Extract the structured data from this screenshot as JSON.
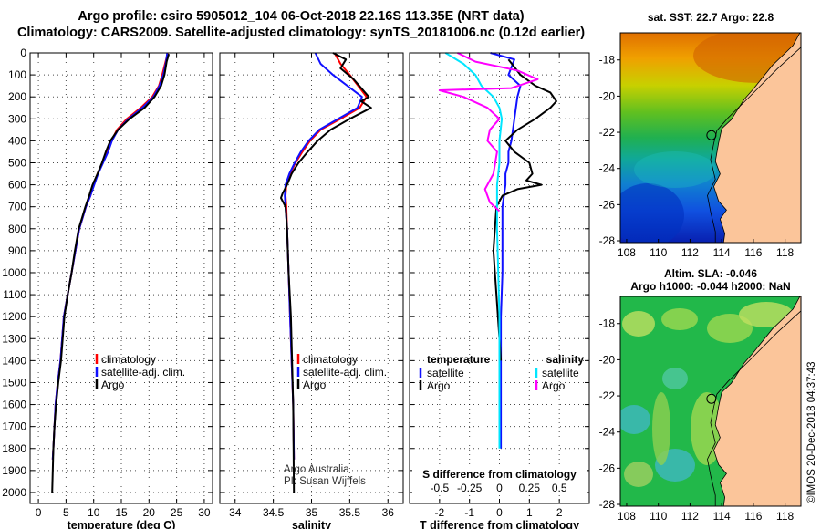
{
  "header": {
    "line1": "Argo profile: csiro 5905012_104 06-Oct-2018 22.16S 113.35E (NRT data)",
    "line2": "Climatology: CARS2009. Satellite-adjusted climatology: synTS_20181006.nc (0.12d earlier)"
  },
  "colors": {
    "climatology": "#ff0000",
    "satellite": "#1010ff",
    "argo": "#000000",
    "sal_sat": "#00e6ff",
    "sal_argo": "#ff00ff",
    "land": "#fbc59a"
  },
  "chart_data": [
    {
      "type": "line",
      "title": "",
      "xlabel": "temperature (deg C)",
      "ylabel": "",
      "xlim": [
        -1.5,
        31.5
      ],
      "ylim": [
        2050,
        0
      ],
      "xticks": [
        "0",
        "5",
        "10",
        "15",
        "20",
        "25",
        "30"
      ],
      "yticks": [
        "0",
        "100",
        "200",
        "300",
        "400",
        "500",
        "600",
        "700",
        "800",
        "900",
        "1000",
        "1100",
        "1200",
        "1300",
        "1400",
        "1500",
        "1600",
        "1700",
        "1800",
        "1900",
        "2000"
      ],
      "legend": [
        "climatology",
        "satellite-adj. clim.",
        "Argo"
      ],
      "series": [
        {
          "name": "climatology",
          "color": "#ff0000",
          "x": [
            23.4,
            23.0,
            22.4,
            21.8,
            20.6,
            18.5,
            16.0,
            14.2,
            13.2,
            12.5,
            11.6,
            10.7,
            10.0,
            9.4,
            8.6,
            8.0,
            7.4,
            6.7,
            6.0,
            5.3,
            4.6,
            4.0,
            3.5,
            3.1,
            2.9,
            2.7,
            2.6
          ],
          "y": [
            0,
            40,
            100,
            150,
            200,
            250,
            300,
            350,
            400,
            450,
            500,
            550,
            600,
            650,
            700,
            750,
            800,
            900,
            1000,
            1100,
            1200,
            1400,
            1500,
            1600,
            1700,
            1800,
            1850
          ]
        },
        {
          "name": "satellite-adj. clim.",
          "color": "#1010ff",
          "x": [
            23.3,
            23.1,
            22.6,
            21.9,
            20.8,
            18.8,
            16.3,
            14.4,
            13.3,
            12.6,
            11.7,
            10.8,
            10.1,
            9.4,
            8.6,
            8.0,
            7.4,
            6.7,
            6.0,
            5.3,
            4.6,
            4.0,
            3.5,
            3.1,
            2.9,
            2.7,
            2.6
          ],
          "y": [
            0,
            40,
            100,
            150,
            200,
            250,
            300,
            350,
            400,
            450,
            500,
            550,
            600,
            650,
            700,
            750,
            800,
            900,
            1000,
            1100,
            1200,
            1400,
            1500,
            1600,
            1700,
            1800,
            1850
          ]
        },
        {
          "name": "Argo",
          "color": "#000000",
          "x": [
            23.6,
            23.2,
            22.8,
            22.2,
            21.0,
            19.2,
            16.5,
            14.4,
            13.0,
            12.2,
            11.5,
            10.7,
            9.8,
            9.2,
            8.5,
            7.9,
            7.3,
            6.6,
            6.0,
            5.3,
            4.7,
            4.1,
            3.6,
            3.2,
            2.9,
            2.7,
            2.5
          ],
          "y": [
            5,
            40,
            100,
            150,
            200,
            250,
            300,
            350,
            400,
            450,
            500,
            550,
            600,
            650,
            700,
            750,
            800,
            900,
            1000,
            1100,
            1200,
            1400,
            1500,
            1600,
            1700,
            1800,
            2000
          ]
        }
      ]
    },
    {
      "type": "line",
      "title": "",
      "xlabel": "salinity",
      "ylabel": "",
      "xlim": [
        33.8,
        36.2
      ],
      "ylim": [
        2050,
        0
      ],
      "xticks": [
        "34",
        "34.5",
        "35",
        "35.5",
        "36"
      ],
      "legend": [
        "climatology",
        "satellite-adj. clim.",
        "Argo"
      ],
      "annotation": [
        "Argo Australia",
        "PI: Susan Wijffels"
      ],
      "series": [
        {
          "name": "climatology",
          "color": "#ff0000",
          "x": [
            35.3,
            35.38,
            35.5,
            35.72,
            35.63,
            35.38,
            35.12,
            34.98,
            34.88,
            34.79,
            34.72,
            34.67,
            34.66,
            34.67,
            34.68,
            34.7,
            34.72,
            34.74,
            34.76,
            34.77
          ],
          "y": [
            0,
            50,
            100,
            200,
            250,
            300,
            350,
            400,
            450,
            500,
            550,
            600,
            650,
            700,
            800,
            1000,
            1200,
            1400,
            1600,
            1850
          ]
        },
        {
          "name": "satellite-adj. clim.",
          "color": "#1010ff",
          "x": [
            35.05,
            35.12,
            35.28,
            35.66,
            35.6,
            35.35,
            35.1,
            34.96,
            34.86,
            34.78,
            34.71,
            34.66,
            34.65,
            34.66,
            34.68,
            34.7,
            34.72,
            34.74,
            34.76,
            34.77
          ],
          "y": [
            0,
            50,
            100,
            200,
            250,
            300,
            350,
            400,
            450,
            500,
            550,
            600,
            650,
            700,
            800,
            1000,
            1200,
            1400,
            1600,
            1850
          ]
        },
        {
          "name": "Argo",
          "color": "#000000",
          "x": [
            35.28,
            35.45,
            35.38,
            35.55,
            35.75,
            35.65,
            35.78,
            35.5,
            35.25,
            35.08,
            34.95,
            34.83,
            34.74,
            34.68,
            34.62,
            34.6,
            34.66,
            34.68,
            34.7,
            34.73,
            34.76,
            34.77
          ],
          "y": [
            0,
            30,
            70,
            120,
            200,
            220,
            250,
            300,
            350,
            400,
            450,
            500,
            550,
            600,
            640,
            660,
            700,
            800,
            1000,
            1200,
            1600,
            2000
          ]
        }
      ]
    },
    {
      "type": "line",
      "title": "S difference from climatology",
      "xlabel": "T difference from climatology",
      "ylabel": "",
      "xlim": [
        -3,
        3
      ],
      "ylim": [
        2050,
        0
      ],
      "xticks": [
        "-2",
        "-1",
        "0",
        "1",
        "2"
      ],
      "x2ticks": [
        "-0.5",
        "-0.25",
        "0",
        "0.25",
        "0.5"
      ],
      "legend_left": [
        "temperature",
        "satellite",
        "Argo"
      ],
      "legend_right": [
        "salinity",
        "satellite",
        "Argo"
      ],
      "series": [
        {
          "name": "T satellite",
          "color": "#1010ff",
          "x": [
            -0.3,
            0.5,
            0.3,
            0.7,
            0.6,
            0.5,
            0.4,
            0.3,
            0.3,
            0.2,
            0.2,
            0.1,
            0.1,
            0.1,
            0.05,
            0.05,
            0.05
          ],
          "y": [
            0,
            30,
            100,
            150,
            200,
            300,
            400,
            450,
            500,
            550,
            600,
            700,
            800,
            1000,
            1200,
            1500,
            1800
          ]
        },
        {
          "name": "T Argo",
          "color": "#000000",
          "x": [
            0.3,
            0.7,
            1.2,
            1.7,
            1.9,
            1.7,
            1.2,
            0.6,
            0.2,
            0.5,
            1.0,
            1.1,
            0.9,
            1.4,
            0.6,
            0.1,
            -0.1,
            -0.2,
            -0.1,
            0.0,
            0.05
          ],
          "y": [
            30,
            100,
            150,
            180,
            220,
            250,
            300,
            350,
            400,
            450,
            500,
            550,
            580,
            600,
            620,
            650,
            700,
            900,
            1100,
            1300,
            1400
          ]
        },
        {
          "name": "S satellite",
          "color": "#00e6ff",
          "x": [
            -0.45,
            -0.3,
            -0.2,
            -0.15,
            -0.05,
            0.0,
            0.02,
            0.0,
            0.0,
            -0.02,
            -0.02,
            0.0,
            0.0
          ],
          "y": [
            0,
            50,
            100,
            150,
            200,
            250,
            300,
            400,
            500,
            600,
            800,
            1200,
            1800
          ]
        },
        {
          "name": "S Argo",
          "color": "#ff00ff",
          "x": [
            -0.35,
            -0.2,
            0.15,
            0.32,
            0.1,
            -0.5,
            -0.3,
            -0.1,
            0.0,
            -0.08,
            -0.1,
            -0.02,
            -0.05,
            -0.12,
            -0.08,
            0.0
          ],
          "y": [
            0,
            40,
            80,
            120,
            160,
            170,
            200,
            250,
            300,
            350,
            400,
            450,
            550,
            620,
            680,
            720
          ]
        }
      ]
    },
    {
      "type": "heatmap",
      "title": "sat. SST: 22.7 Argo: 22.8",
      "xticks": [
        "108",
        "110",
        "112",
        "114",
        "116",
        "118"
      ],
      "yticks": [
        "-18",
        "-20",
        "-22",
        "-24",
        "-26",
        "-28"
      ],
      "xlim": [
        107.6,
        119
      ],
      "ylim": [
        -28.1,
        -16.5
      ]
    },
    {
      "type": "heatmap",
      "title": [
        "Altim. SLA: -0.046",
        "Argo h1000: -0.044 h2000: NaN"
      ],
      "xticks": [
        "108",
        "110",
        "112",
        "114",
        "116",
        "118"
      ],
      "yticks": [
        "-18",
        "-20",
        "-22",
        "-24",
        "-26",
        "-28"
      ],
      "xlim": [
        107.6,
        119
      ],
      "ylim": [
        -28.1,
        -16.5
      ]
    }
  ],
  "footer": {
    "timestamp": "©IMOS 20-Dec-2018 04:37:43"
  }
}
